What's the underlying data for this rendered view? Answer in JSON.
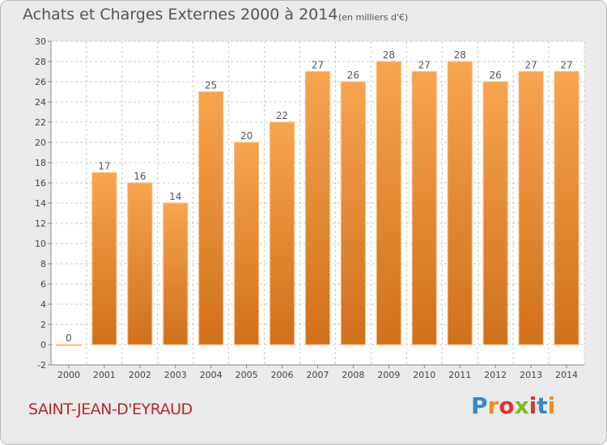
{
  "header": {
    "title": "Achats et Charges Externes 2000 à 2014",
    "subtitle": "(en milliers d'€)"
  },
  "footer": {
    "commune": "SAINT-JEAN-D'EYRAUD",
    "logo": "Proxiti"
  },
  "colors": {
    "bar_top": "#f7a54e",
    "bar_bottom": "#d0701a",
    "bar_edge": "#f9b877",
    "grid": "#c8c8c8",
    "axis_text": "#444444"
  },
  "chart_data": {
    "type": "bar",
    "title": "Achats et Charges Externes 2000 à 2014",
    "subtitle": "(en milliers d'€)",
    "xlabel": "",
    "ylabel": "",
    "categories": [
      "2000",
      "2001",
      "2002",
      "2003",
      "2004",
      "2005",
      "2006",
      "2007",
      "2008",
      "2009",
      "2010",
      "2011",
      "2012",
      "2013",
      "2014"
    ],
    "values": [
      0,
      17,
      16,
      14,
      25,
      20,
      22,
      27,
      26,
      28,
      27,
      28,
      26,
      27,
      27
    ],
    "ylim": [
      -2,
      30
    ],
    "yticks": [
      -2,
      0,
      2,
      4,
      6,
      8,
      10,
      12,
      14,
      16,
      18,
      20,
      22,
      24,
      26,
      28,
      30
    ],
    "grid": true,
    "legend": "none"
  }
}
